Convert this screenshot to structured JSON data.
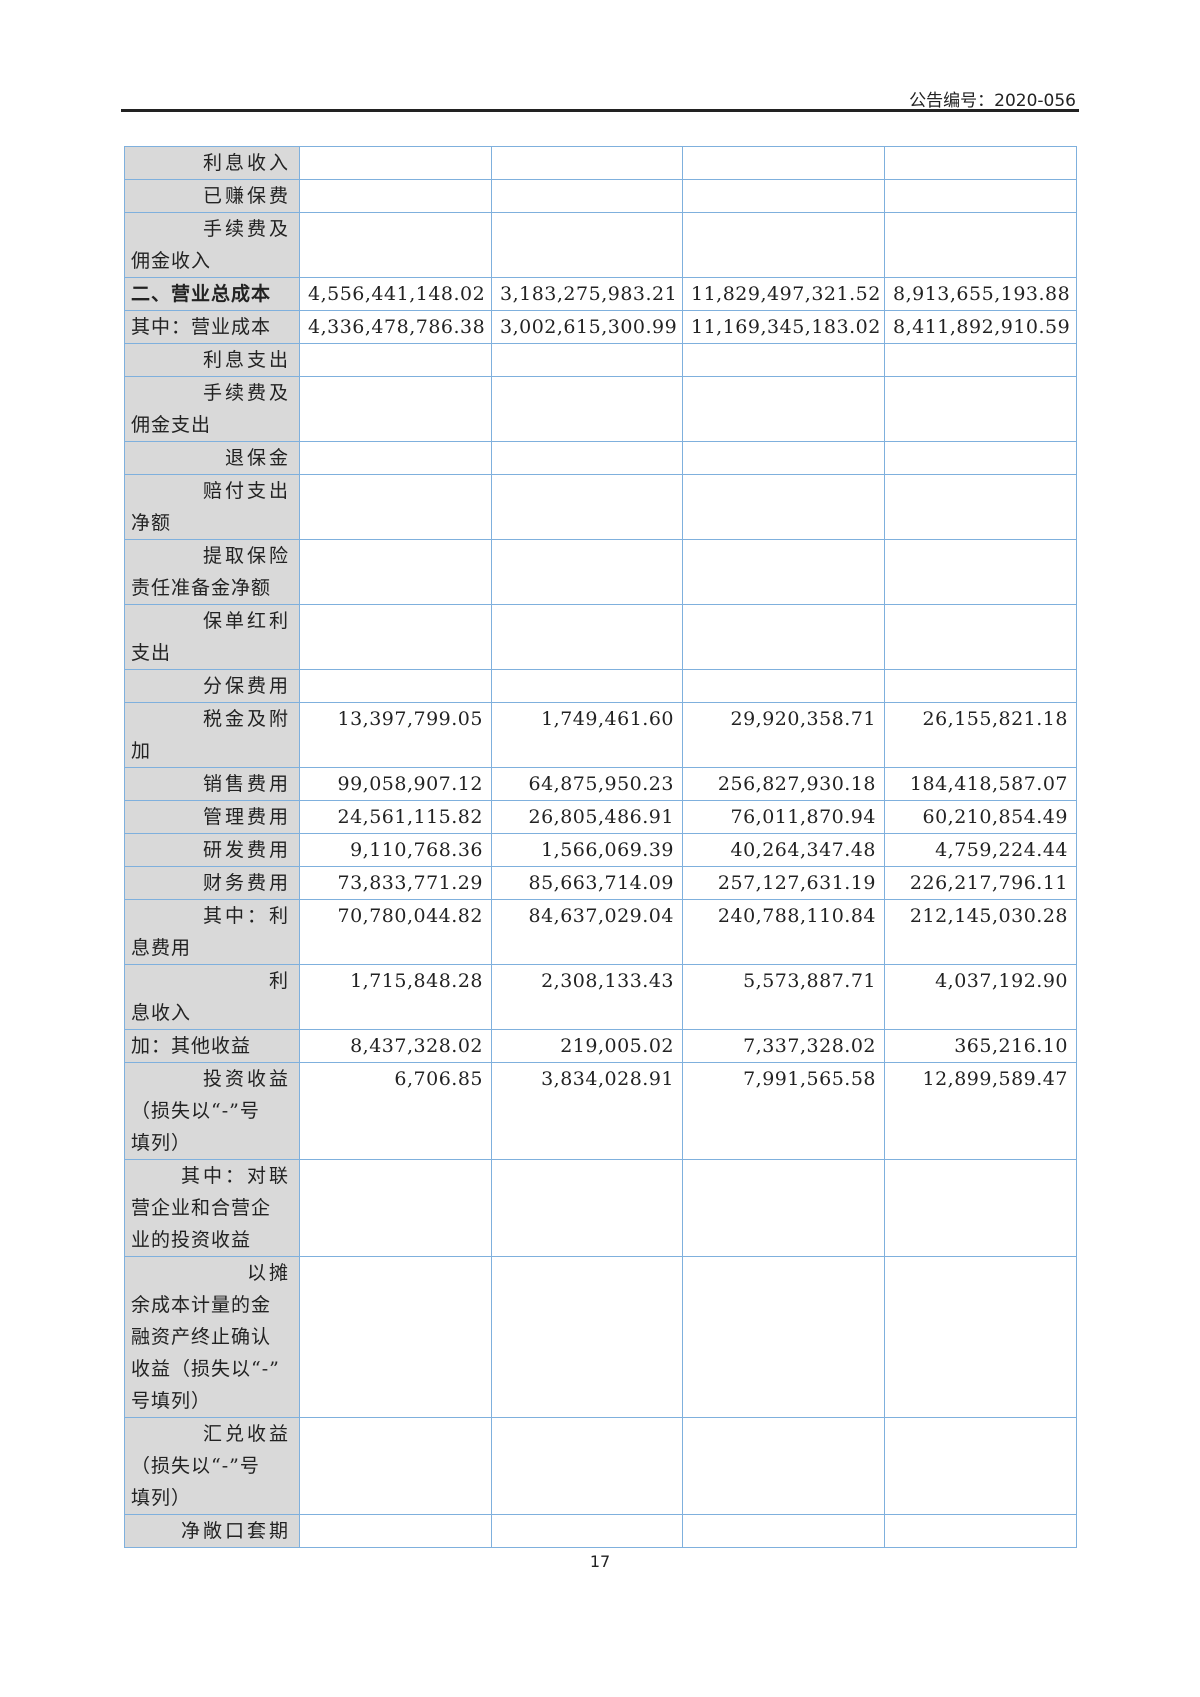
{
  "header": {
    "announcement_no": "公告编号：2020-056"
  },
  "rows": [
    {
      "label_lines": [
        "利息收入"
      ],
      "values": [
        "",
        "",
        "",
        ""
      ]
    },
    {
      "label_lines": [
        "已赚保费"
      ],
      "values": [
        "",
        "",
        "",
        ""
      ]
    },
    {
      "label_lines": [
        "手续费及",
        "佣金收入"
      ],
      "values": [
        "",
        "",
        "",
        ""
      ]
    },
    {
      "label_lines": [
        "二、营业总成本"
      ],
      "values": [
        "4,556,441,148.02",
        "3,183,275,983.21",
        "11,829,497,321.52",
        "8,913,655,193.88"
      ]
    },
    {
      "label_lines": [
        "其中：营业成本"
      ],
      "values": [
        "4,336,478,786.38",
        "3,002,615,300.99",
        "11,169,345,183.02",
        "8,411,892,910.59"
      ]
    },
    {
      "label_lines": [
        "利息支出"
      ],
      "values": [
        "",
        "",
        "",
        ""
      ]
    },
    {
      "label_lines": [
        "手续费及",
        "佣金支出"
      ],
      "values": [
        "",
        "",
        "",
        ""
      ]
    },
    {
      "label_lines": [
        "退保金"
      ],
      "values": [
        "",
        "",
        "",
        ""
      ]
    },
    {
      "label_lines": [
        "赔付支出",
        "净额"
      ],
      "values": [
        "",
        "",
        "",
        ""
      ]
    },
    {
      "label_lines": [
        "提取保险",
        "责任准备金净额"
      ],
      "values": [
        "",
        "",
        "",
        ""
      ]
    },
    {
      "label_lines": [
        "保单红利",
        "支出"
      ],
      "values": [
        "",
        "",
        "",
        ""
      ]
    },
    {
      "label_lines": [
        "分保费用"
      ],
      "values": [
        "",
        "",
        "",
        ""
      ]
    },
    {
      "label_lines": [
        "税金及附",
        "加"
      ],
      "values": [
        "13,397,799.05",
        "1,749,461.60",
        "29,920,358.71",
        "26,155,821.18"
      ]
    },
    {
      "label_lines": [
        "销售费用"
      ],
      "values": [
        "99,058,907.12",
        "64,875,950.23",
        "256,827,930.18",
        "184,418,587.07"
      ]
    },
    {
      "label_lines": [
        "管理费用"
      ],
      "values": [
        "24,561,115.82",
        "26,805,486.91",
        "76,011,870.94",
        "60,210,854.49"
      ]
    },
    {
      "label_lines": [
        "研发费用"
      ],
      "values": [
        "9,110,768.36",
        "1,566,069.39",
        "40,264,347.48",
        "4,759,224.44"
      ]
    },
    {
      "label_lines": [
        "财务费用"
      ],
      "values": [
        "73,833,771.29",
        "85,663,714.09",
        "257,127,631.19",
        "226,217,796.11"
      ]
    },
    {
      "label_lines": [
        "其中：利",
        "息费用"
      ],
      "values": [
        "70,780,044.82",
        "84,637,029.04",
        "240,788,110.84",
        "212,145,030.28"
      ]
    },
    {
      "label_lines": [
        "利",
        "息收入"
      ],
      "values": [
        "1,715,848.28",
        "2,308,133.43",
        "5,573,887.71",
        "4,037,192.90"
      ]
    },
    {
      "label_lines": [
        "加：其他收益"
      ],
      "values": [
        "8,437,328.02",
        "219,005.02",
        "7,337,328.02",
        "365,216.10"
      ]
    },
    {
      "label_lines": [
        "投资收益",
        "（损失以“-”号",
        "填列）"
      ],
      "values": [
        "6,706.85",
        "3,834,028.91",
        "7,991,565.58",
        "12,899,589.47"
      ]
    },
    {
      "label_lines": [
        "其中：对联",
        "营企业和合营企",
        "业的投资收益"
      ],
      "values": [
        "",
        "",
        "",
        ""
      ]
    },
    {
      "label_lines": [
        "以摊",
        "余成本计量的金",
        "融资产终止确认",
        "收益（损失以“-”",
        "号填列）"
      ],
      "values": [
        "",
        "",
        "",
        ""
      ]
    },
    {
      "label_lines": [
        "汇兑收益",
        "（损失以“-”号",
        "填列）"
      ],
      "values": [
        "",
        "",
        "",
        ""
      ]
    },
    {
      "label_lines": [
        "净敞口套期"
      ],
      "values": [
        "",
        "",
        "",
        ""
      ]
    }
  ],
  "footer": {
    "page_number": "17"
  }
}
